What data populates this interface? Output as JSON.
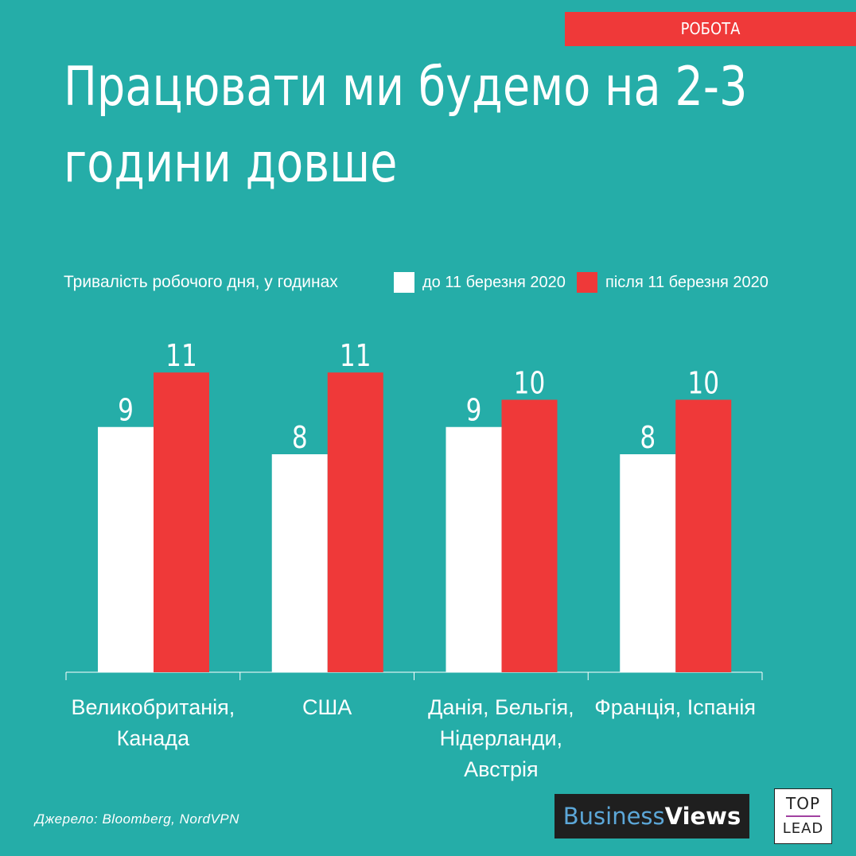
{
  "tag": "РОБОТА",
  "title": "Працювати ми будемо на 2-3 години довше",
  "colors": {
    "background": "#25ada8",
    "before": "#ffffff",
    "after": "#ef3939",
    "accent": "#ef3939"
  },
  "chart_data": {
    "type": "bar",
    "ylabel": "Тривалість робочого дня, у годинах",
    "categories": [
      [
        "Великобританія,",
        "Канада"
      ],
      [
        "США"
      ],
      [
        "Данія, Бельгія,",
        "Нідерланди,",
        "Австрія"
      ],
      [
        "Франція, Іспанія"
      ]
    ],
    "series": [
      {
        "name": "до 11 березня 2020",
        "color": "#ffffff",
        "values": [
          9,
          8,
          9,
          8
        ]
      },
      {
        "name": "після 11 березня 2020",
        "color": "#ef3939",
        "values": [
          11,
          11,
          10,
          10
        ]
      }
    ],
    "ylim": [
      0,
      11
    ],
    "grid": false,
    "legend_position": "top-right"
  },
  "source": "Джерело:  Bloomberg,  NordVPN",
  "logos": {
    "business_views": {
      "light": "Business",
      "bold": "Views"
    },
    "top_lead": {
      "top": "TOP",
      "bottom": "LEAD"
    }
  }
}
